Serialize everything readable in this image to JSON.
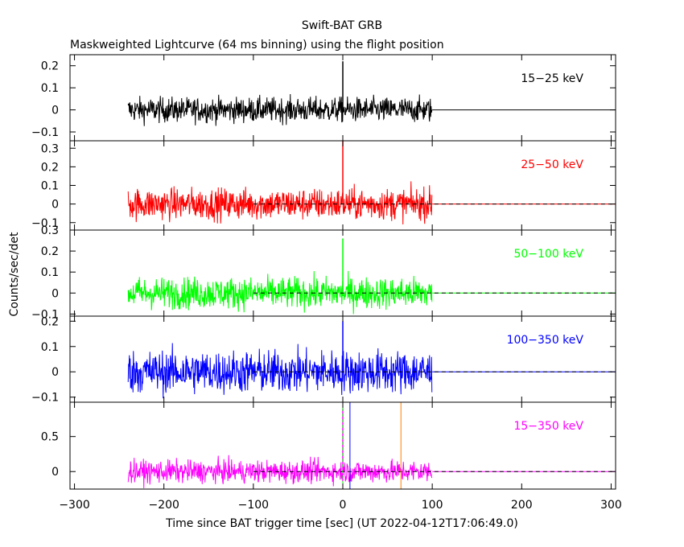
{
  "title": "Swift-BAT GRB",
  "subtitle": "Maskweighted Lightcurve (64 ms binning) using the flight position",
  "ylabel": "Counts/sec/det",
  "xlabel": "Time since BAT trigger time [sec] (UT 2022-04-12T17:06:49.0)",
  "xaxis": {
    "range": [
      -305,
      305
    ],
    "ticks": [
      -300,
      -200,
      -100,
      0,
      100,
      200,
      300
    ],
    "tick_labels": [
      "−300",
      "−200",
      "−100",
      "0",
      "100",
      "200",
      "300"
    ]
  },
  "chart_data": [
    {
      "type": "line",
      "band": "15−25 keV",
      "color": "#000000",
      "ylim": [
        -0.14,
        0.25
      ],
      "yticks": [
        -0.1,
        0,
        0.1,
        0.2
      ],
      "ytick_labels": [
        "−0.1",
        "0",
        "0.1",
        "0.2"
      ],
      "data_range": [
        -240,
        100
      ],
      "noise_amplitude": 0.06,
      "peak": {
        "x": 0,
        "y": 0.22
      },
      "zero_line_x": [
        100,
        305
      ],
      "dashed_zero": false,
      "extra_vlines": []
    },
    {
      "type": "line",
      "band": "25−50 keV",
      "color": "#ff0000",
      "ylim": [
        -0.14,
        0.34
      ],
      "yticks": [
        -0.1,
        0,
        0.1,
        0.2,
        0.3
      ],
      "ytick_labels": [
        "−0.1",
        "0",
        "0.1",
        "0.2",
        "0.3"
      ],
      "data_range": [
        -240,
        100
      ],
      "noise_amplitude": 0.09,
      "peak": {
        "x": 0,
        "y": 0.34
      },
      "zero_line_x": [
        100,
        305
      ],
      "dashed_zero": true,
      "extra_vlines": []
    },
    {
      "type": "line",
      "band": "50−100 keV",
      "color": "#00ff00",
      "ylim": [
        -0.11,
        0.3
      ],
      "yticks": [
        -0.1,
        0,
        0.1,
        0.2,
        0.3
      ],
      "ytick_labels": [
        "−0.1",
        "0",
        "0.1",
        "0.2",
        "0.3"
      ],
      "data_range": [
        -240,
        100
      ],
      "noise_amplitude": 0.08,
      "peak": {
        "x": 0,
        "y": 0.26
      },
      "zero_line_x": [
        100,
        305
      ],
      "dashed_zero": true,
      "extra_vlines": []
    },
    {
      "type": "line",
      "band": "100−350 keV",
      "color": "#0000ff",
      "ylim": [
        -0.12,
        0.22
      ],
      "yticks": [
        -0.1,
        0,
        0.1,
        0.2
      ],
      "ytick_labels": [
        "−0.1",
        "0",
        "0.1",
        "0.2"
      ],
      "data_range": [
        -240,
        100
      ],
      "noise_amplitude": 0.09,
      "peak": {
        "x": 0,
        "y": 0.2
      },
      "zero_line_x": [
        100,
        305
      ],
      "dashed_zero": true,
      "extra_vlines": []
    },
    {
      "type": "line",
      "band": "15−350 keV",
      "color": "#ff00ff",
      "ylim": [
        -0.25,
        0.99
      ],
      "yticks": [
        0,
        0.5
      ],
      "ytick_labels": [
        "0",
        "0.5"
      ],
      "data_range": [
        -240,
        100
      ],
      "noise_amplitude": 0.17,
      "peak": {
        "x": 0,
        "y": 0.9
      },
      "zero_line_x": [
        100,
        305
      ],
      "dashed_zero": true,
      "extra_vlines": [
        {
          "x": 0,
          "color": "#ff0000",
          "style": "dashed"
        },
        {
          "x": 0,
          "color": "#00ff00",
          "style": "dashed"
        },
        {
          "x": 8,
          "color": "#0000ff",
          "style": "solid"
        },
        {
          "x": 65,
          "color": "#ff8000",
          "style": "solid"
        }
      ]
    }
  ]
}
